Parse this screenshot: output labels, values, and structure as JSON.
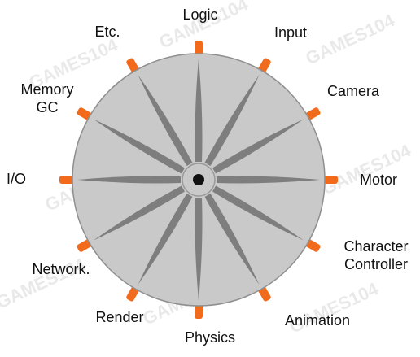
{
  "diagram": {
    "colors": {
      "background": "#ffffff",
      "wheel_fill": "#c9c9c9",
      "wheel_stroke": "#8f8f8f",
      "spoke": "#7e7e7e",
      "hub_ring": "#999999",
      "hub_center": "#111111",
      "tab": "#f26a1b",
      "text": "#111111",
      "watermark": "#d8d8d8"
    },
    "hub_icon": "black-dot-center",
    "watermark_text": "GAMES104",
    "systems": [
      {
        "label": "Logic"
      },
      {
        "label": "Input"
      },
      {
        "label": "Camera"
      },
      {
        "label": "Motor"
      },
      {
        "label": "Character\nController"
      },
      {
        "label": "Animation"
      },
      {
        "label": "Physics"
      },
      {
        "label": "Render"
      },
      {
        "label": "Network."
      },
      {
        "label": "I/O"
      },
      {
        "label": "Memory\nGC"
      },
      {
        "label": "Etc."
      }
    ]
  }
}
